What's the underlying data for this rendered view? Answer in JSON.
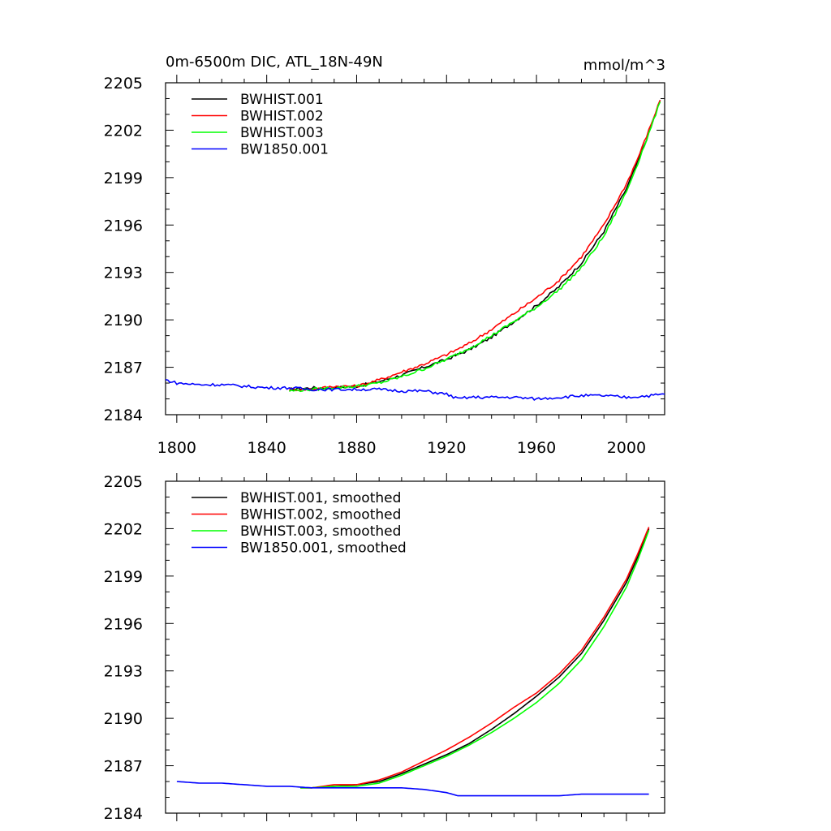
{
  "figure": {
    "title_left": "0m-6500m DIC, ATL_18N-49N",
    "title_right": "mmol/m^3"
  },
  "colors": {
    "BWHIST.001": "#000000",
    "BWHIST.002": "#ff0000",
    "BWHIST.003": "#00ff00",
    "BW1850.001": "#0000ff"
  },
  "chart_data": [
    {
      "type": "line",
      "ylim": [
        2184,
        2205
      ],
      "xlim": [
        1795,
        2017
      ],
      "yticks": [
        "2184",
        "2187",
        "2190",
        "2193",
        "2196",
        "2199",
        "2202",
        "2205"
      ],
      "xticks": [
        "1800",
        "1840",
        "1880",
        "1920",
        "1960",
        "2000"
      ],
      "show_xtick_labels": true,
      "grid": false,
      "legend_placement": "top-left",
      "noisy": true,
      "series": [
        {
          "name": "BWHIST.001",
          "color": "#000000",
          "x": [
            1850,
            1860,
            1870,
            1880,
            1890,
            1900,
            1910,
            1920,
            1930,
            1940,
            1950,
            1960,
            1970,
            1980,
            1990,
            2000,
            2005,
            2010,
            2015
          ],
          "y": [
            2185.6,
            2185.7,
            2185.7,
            2185.8,
            2186.1,
            2186.5,
            2187.0,
            2187.5,
            2188.1,
            2188.9,
            2189.9,
            2190.9,
            2192.1,
            2193.6,
            2195.6,
            2198.3,
            2200.0,
            2201.8,
            2203.9
          ]
        },
        {
          "name": "BWHIST.002",
          "color": "#ff0000",
          "x": [
            1850,
            1860,
            1870,
            1880,
            1890,
            1900,
            1910,
            1920,
            1930,
            1940,
            1950,
            1960,
            1970,
            1980,
            1990,
            2000,
            2005,
            2010,
            2015
          ],
          "y": [
            2185.6,
            2185.6,
            2185.8,
            2185.8,
            2186.2,
            2186.7,
            2187.2,
            2187.8,
            2188.5,
            2189.4,
            2190.4,
            2191.4,
            2192.5,
            2194.0,
            2196.0,
            2198.6,
            2200.2,
            2202.0,
            2203.9
          ]
        },
        {
          "name": "BWHIST.003",
          "color": "#00ff00",
          "x": [
            1850,
            1860,
            1870,
            1880,
            1890,
            1900,
            1910,
            1920,
            1930,
            1940,
            1950,
            1960,
            1970,
            1980,
            1990,
            2000,
            2005,
            2010,
            2015
          ],
          "y": [
            2185.5,
            2185.6,
            2185.7,
            2185.8,
            2186.0,
            2186.4,
            2186.9,
            2187.5,
            2188.2,
            2189.0,
            2189.9,
            2190.8,
            2191.9,
            2193.3,
            2195.3,
            2198.1,
            2199.9,
            2201.8,
            2203.8
          ]
        },
        {
          "name": "BW1850.001",
          "color": "#0000ff",
          "x": [
            1795,
            1800,
            1810,
            1820,
            1830,
            1840,
            1850,
            1860,
            1870,
            1880,
            1890,
            1900,
            1910,
            1920,
            1925,
            1930,
            1940,
            1950,
            1960,
            1970,
            1980,
            1990,
            2000,
            2010,
            2017
          ],
          "y": [
            2186.2,
            2186.0,
            2185.9,
            2185.9,
            2185.8,
            2185.7,
            2185.7,
            2185.6,
            2185.6,
            2185.6,
            2185.6,
            2185.5,
            2185.5,
            2185.3,
            2185.0,
            2185.1,
            2185.1,
            2185.1,
            2185.0,
            2185.1,
            2185.2,
            2185.2,
            2185.1,
            2185.2,
            2185.3
          ]
        }
      ]
    },
    {
      "type": "line",
      "ylim": [
        2184,
        2205
      ],
      "xlim": [
        1795,
        2017
      ],
      "yticks": [
        "2184",
        "2187",
        "2190",
        "2193",
        "2196",
        "2199",
        "2202",
        "2205"
      ],
      "xticks": [
        "1800",
        "1840",
        "1880",
        "1920",
        "1960",
        "2000"
      ],
      "show_xtick_labels": false,
      "grid": false,
      "legend_placement": "top-left",
      "noisy": false,
      "series": [
        {
          "name": "BWHIST.001, smoothed",
          "color": "#000000",
          "x": [
            1855,
            1860,
            1870,
            1880,
            1890,
            1900,
            1910,
            1920,
            1930,
            1940,
            1950,
            1960,
            1970,
            1980,
            1990,
            2000,
            2005,
            2010
          ],
          "y": [
            2185.6,
            2185.6,
            2185.7,
            2185.8,
            2186.0,
            2186.5,
            2187.1,
            2187.7,
            2188.4,
            2189.3,
            2190.3,
            2191.4,
            2192.6,
            2194.1,
            2196.2,
            2198.6,
            2200.2,
            2202.0
          ]
        },
        {
          "name": "BWHIST.002, smoothed",
          "color": "#ff0000",
          "x": [
            1855,
            1860,
            1870,
            1880,
            1890,
            1900,
            1910,
            1920,
            1930,
            1940,
            1950,
            1960,
            1970,
            1980,
            1990,
            2000,
            2005,
            2010
          ],
          "y": [
            2185.6,
            2185.6,
            2185.8,
            2185.8,
            2186.1,
            2186.6,
            2187.3,
            2188.0,
            2188.8,
            2189.7,
            2190.7,
            2191.6,
            2192.8,
            2194.3,
            2196.4,
            2198.8,
            2200.4,
            2202.1
          ]
        },
        {
          "name": "BWHIST.003, smoothed",
          "color": "#00ff00",
          "x": [
            1855,
            1860,
            1870,
            1880,
            1890,
            1900,
            1910,
            1920,
            1930,
            1940,
            1950,
            1960,
            1970,
            1980,
            1990,
            2000,
            2005,
            2010
          ],
          "y": [
            2185.6,
            2185.6,
            2185.7,
            2185.7,
            2185.9,
            2186.4,
            2187.0,
            2187.6,
            2188.3,
            2189.1,
            2190.0,
            2191.0,
            2192.2,
            2193.7,
            2195.8,
            2198.3,
            2200.0,
            2201.9
          ]
        },
        {
          "name": "BW1850.001, smoothed",
          "color": "#0000ff",
          "x": [
            1800,
            1810,
            1820,
            1830,
            1840,
            1850,
            1860,
            1870,
            1880,
            1890,
            1900,
            1910,
            1920,
            1925,
            1930,
            1940,
            1950,
            1960,
            1970,
            1980,
            1990,
            2000,
            2010
          ],
          "y": [
            2186.0,
            2185.9,
            2185.9,
            2185.8,
            2185.7,
            2185.7,
            2185.6,
            2185.6,
            2185.6,
            2185.6,
            2185.6,
            2185.5,
            2185.3,
            2185.1,
            2185.1,
            2185.1,
            2185.1,
            2185.1,
            2185.1,
            2185.2,
            2185.2,
            2185.2,
            2185.2
          ]
        }
      ]
    }
  ]
}
